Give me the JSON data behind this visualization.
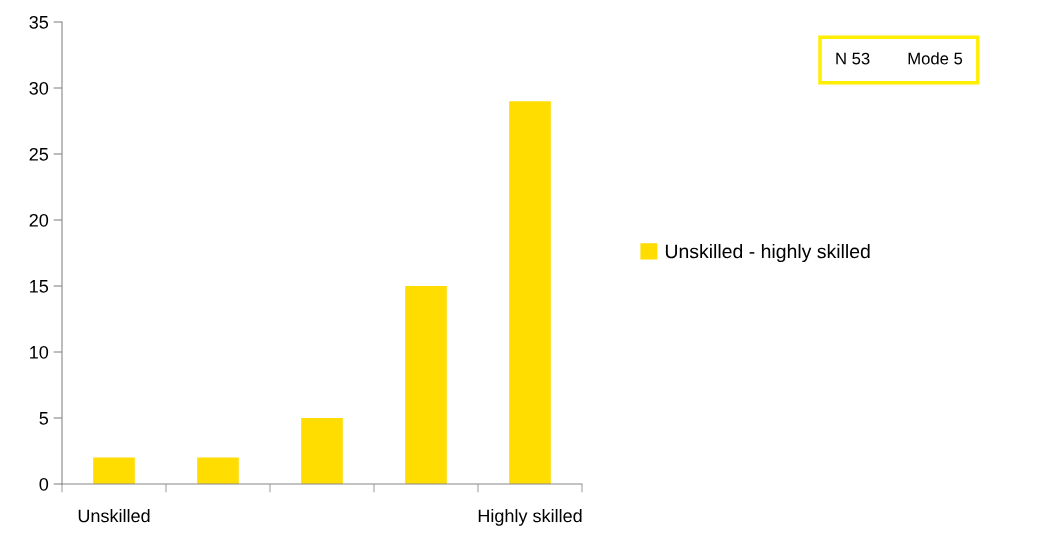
{
  "chart_data": {
    "type": "bar",
    "categories": [
      "Unskilled",
      null,
      null,
      null,
      "Highly skilled"
    ],
    "series": [
      {
        "name": "Unskilled - highly skilled",
        "color": "#ffdd00",
        "values": [
          2,
          2,
          5,
          15,
          29
        ]
      }
    ],
    "ylim": [
      0,
      35
    ],
    "yticks": [
      0,
      5,
      10,
      15,
      20,
      25,
      30,
      35
    ],
    "grid": false,
    "legend": "right",
    "annotations": [
      "N 53",
      "Mode 5"
    ]
  }
}
